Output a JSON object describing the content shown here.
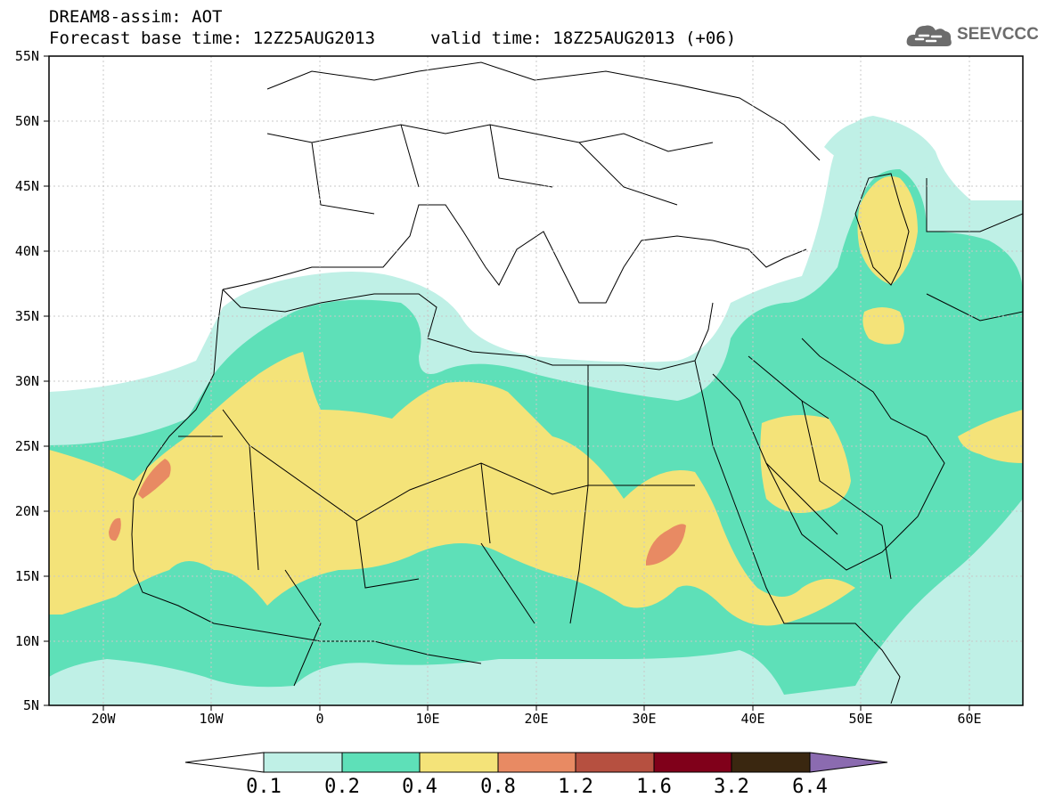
{
  "header": {
    "title_line1": "DREAM8-assim: AOT",
    "base_time": "Forecast base time: 12Z25AUG2013",
    "valid_time": "valid time: 18Z25AUG2013 (+06)",
    "logo_text": "SEEVCCC"
  },
  "map": {
    "region": "North Africa, Europe and Middle East",
    "lon_range": [
      -25,
      65
    ],
    "lat_range": [
      5,
      55
    ],
    "gridlines": true,
    "lat_labels": [
      "5N",
      "10N",
      "15N",
      "20N",
      "25N",
      "30N",
      "35N",
      "40N",
      "45N",
      "50N",
      "55N"
    ],
    "lon_labels": [
      "20W",
      "10W",
      "0",
      "10E",
      "20E",
      "30E",
      "40E",
      "50E",
      "60E"
    ]
  },
  "colorbar": {
    "labels": [
      "0.1",
      "0.2",
      "0.4",
      "0.8",
      "1.2",
      "1.6",
      "3.2",
      "6.4"
    ],
    "colors": [
      "#bff0e6",
      "#5ee0b8",
      "#f4e379",
      "#e88a63",
      "#b65040",
      "#80001a",
      "#3a2710",
      "#8b6bb0"
    ]
  }
}
